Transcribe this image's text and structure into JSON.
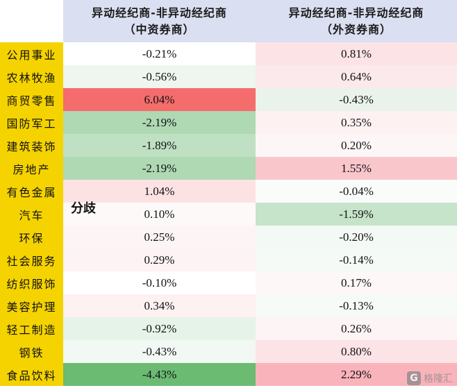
{
  "headers": {
    "col1_line1": "异动经纪商-非异动经纪商",
    "col1_line2": "（中资券商）",
    "col2_line1": "异动经纪商-非异动经纪商",
    "col2_line2": "（外资券商）"
  },
  "rows": [
    {
      "label": "公用事业",
      "chinese": "-0.21%",
      "foreign": "0.81%",
      "chinese_bg": "#ffffff",
      "foreign_bg": "#fbe3e6"
    },
    {
      "label": "农林牧渔",
      "chinese": "-0.56%",
      "foreign": "0.64%",
      "chinese_bg": "#eef6ef",
      "foreign_bg": "#fce9eb"
    },
    {
      "label": "商贸零售",
      "chinese": "6.04%",
      "foreign": "-0.43%",
      "chinese_bg": "#f46c6c",
      "foreign_bg": "#e9f3eb"
    },
    {
      "label": "国防军工",
      "chinese": "-2.19%",
      "foreign": "0.35%",
      "chinese_bg": "#aed9b3",
      "foreign_bg": "#fdf1f2"
    },
    {
      "label": "建筑装饰",
      "chinese": "-1.89%",
      "foreign": "0.20%",
      "chinese_bg": "#bfe0c3",
      "foreign_bg": "#fdf6f7"
    },
    {
      "label": "房地产",
      "chinese": "-2.19%",
      "foreign": "1.55%",
      "chinese_bg": "#aed9b3",
      "foreign_bg": "#f9c6cc"
    },
    {
      "label": "有色金属",
      "chinese": "1.04%",
      "foreign": "-0.04%",
      "chinese_bg": "#fde2e4",
      "foreign_bg": "#fafcfa"
    },
    {
      "label": "汽车",
      "chinese": "0.10%",
      "foreign": "-1.59%",
      "chinese_bg": "#fdf9f9",
      "foreign_bg": "#c6e4ca"
    },
    {
      "label": "环保",
      "chinese": "0.25%",
      "foreign": "-0.20%",
      "chinese_bg": "#fdf4f5",
      "foreign_bg": "#f3f9f4"
    },
    {
      "label": "社会服务",
      "chinese": "0.29%",
      "foreign": "-0.14%",
      "chinese_bg": "#fdf3f4",
      "foreign_bg": "#f5faf6"
    },
    {
      "label": "纺织服饰",
      "chinese": "-0.10%",
      "foreign": "0.17%",
      "chinese_bg": "#ffffff",
      "foreign_bg": "#fdf7f8"
    },
    {
      "label": "美容护理",
      "chinese": "0.34%",
      "foreign": "-0.13%",
      "chinese_bg": "#fdf1f2",
      "foreign_bg": "#f6fbf7"
    },
    {
      "label": "轻工制造",
      "chinese": "-0.92%",
      "foreign": "0.26%",
      "chinese_bg": "#e6f3e8",
      "foreign_bg": "#fdf4f5"
    },
    {
      "label": "钢铁",
      "chinese": "-0.43%",
      "foreign": "0.80%",
      "chinese_bg": "#f2f8f3",
      "foreign_bg": "#fbe3e6"
    },
    {
      "label": "食品饮料",
      "chinese": "-4.43%",
      "foreign": "2.29%",
      "chinese_bg": "#6bbb73",
      "foreign_bg": "#f8b3bb"
    }
  ],
  "annotation": "分歧",
  "watermark": {
    "logo": "G",
    "text": "格隆汇"
  }
}
